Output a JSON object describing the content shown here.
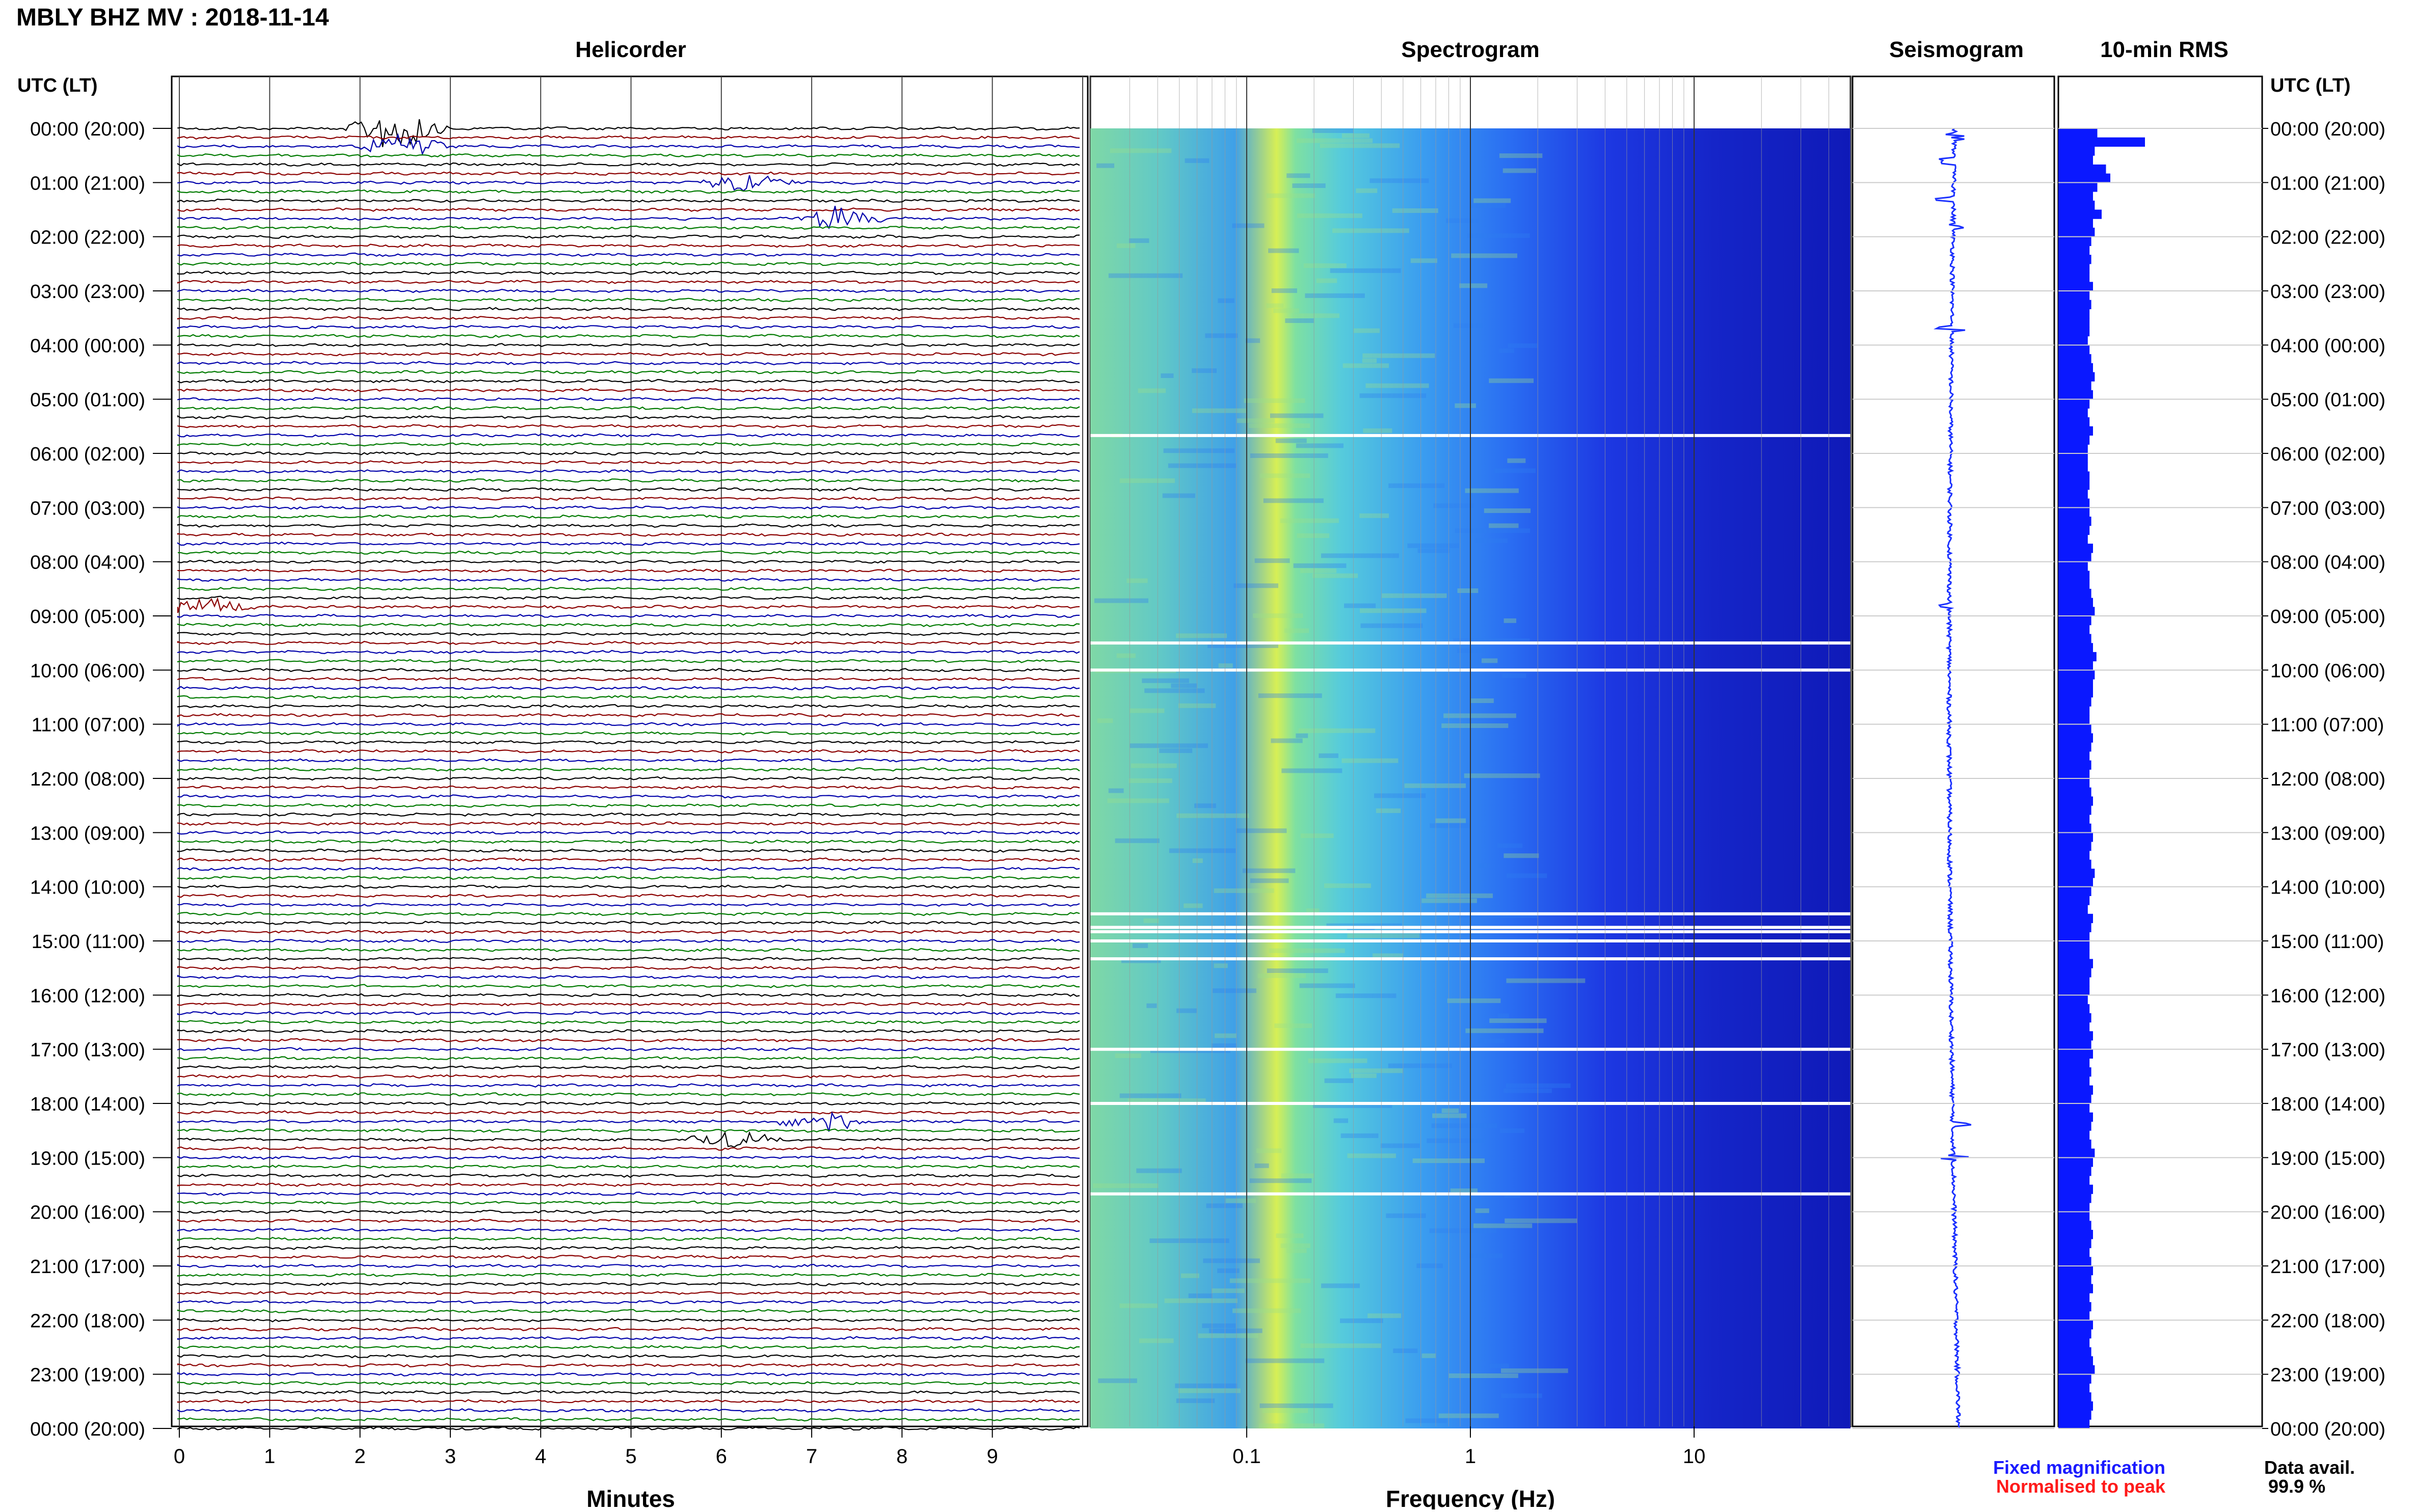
{
  "header": {
    "title": "MBLY BHZ MV : 2018-11-14",
    "utc_left": "UTC (LT)",
    "utc_right": "UTC (LT)"
  },
  "panels": {
    "helicorder": "Helicorder",
    "spectrogram": "Spectrogram",
    "seismogram": "Seismogram",
    "rms": "10-min RMS"
  },
  "time_labels": [
    "00:00 (20:00)",
    "01:00 (21:00)",
    "02:00 (22:00)",
    "03:00 (23:00)",
    "04:00 (00:00)",
    "05:00 (01:00)",
    "06:00 (02:00)",
    "07:00 (03:00)",
    "08:00 (04:00)",
    "09:00 (05:00)",
    "10:00 (06:00)",
    "11:00 (07:00)",
    "12:00 (08:00)",
    "13:00 (09:00)",
    "14:00 (10:00)",
    "15:00 (11:00)",
    "16:00 (12:00)",
    "17:00 (13:00)",
    "18:00 (14:00)",
    "19:00 (15:00)",
    "20:00 (16:00)",
    "21:00 (17:00)",
    "22:00 (18:00)",
    "23:00 (19:00)",
    "00:00 (20:00)"
  ],
  "axes": {
    "minutes_ticks": [
      "0",
      "1",
      "2",
      "3",
      "4",
      "5",
      "6",
      "7",
      "8",
      "9"
    ],
    "minutes_label": "Minutes",
    "freq_ticks": [
      "0.1",
      "1",
      "10"
    ],
    "freq_label": "Frequency (Hz)"
  },
  "legend": {
    "fixed": "Fixed magnification",
    "normalised": "Normalised to peak",
    "fixed_color": "#1a1aff",
    "normalised_color": "#ff1a1a",
    "data_avail_label": "Data avail.",
    "data_avail_value": "99.9 %"
  },
  "colors": {
    "trace_cycle": [
      "#000000",
      "#8b0000",
      "#0000aa",
      "#007a00"
    ],
    "rms_bar": "#0a18ff",
    "seismogram_trace": "#1a30ff"
  },
  "chart_data": [
    {
      "type": "line",
      "title": "Helicorder",
      "xlabel": "Minutes",
      "xlim": [
        0,
        10
      ],
      "y_hours": [
        0,
        24
      ],
      "lines_per_hour": 6,
      "events": [
        {
          "hour": 0.0,
          "minute": 2.4,
          "amplitude": 3.0
        },
        {
          "hour": 0.33,
          "minute": 2.5,
          "amplitude": 1.6
        },
        {
          "hour": 1.0,
          "minute": 6.3,
          "amplitude": 1.2
        },
        {
          "hour": 1.67,
          "minute": 7.3,
          "amplitude": 1.4
        },
        {
          "hour": 8.83,
          "minute": 0.3,
          "amplitude": 1.2
        },
        {
          "hour": 18.33,
          "minute": 7.1,
          "amplitude": 1.5
        },
        {
          "hour": 18.67,
          "minute": 6.1,
          "amplitude": 1.0
        }
      ]
    },
    {
      "type": "heatmap",
      "title": "Spectrogram",
      "xlabel": "Frequency (Hz)",
      "x_scale": "log",
      "xlim": [
        0.02,
        50
      ],
      "y_hours": [
        0,
        24
      ],
      "gap_hours": [
        5.67,
        9.5,
        10.0,
        14.5,
        14.75,
        14.83,
        15.0,
        15.33,
        17.0,
        18.0,
        19.67
      ]
    },
    {
      "type": "line",
      "title": "Seismogram",
      "y_hours": [
        0,
        24
      ],
      "spike_hours": [
        0.15,
        0.6,
        1.3,
        1.8,
        3.7,
        8.8,
        18.4,
        19.0
      ]
    },
    {
      "type": "bar",
      "title": "10-min RMS",
      "orientation": "horizontal",
      "bins_per_hour": 6,
      "hours": [
        0,
        24
      ],
      "values": [
        0.45,
        1.0,
        0.42,
        0.4,
        0.55,
        0.6,
        0.45,
        0.4,
        0.42,
        0.5,
        0.4,
        0.42,
        0.38,
        0.36,
        0.38,
        0.36,
        0.36,
        0.4,
        0.36,
        0.38,
        0.36,
        0.36,
        0.36,
        0.34,
        0.36,
        0.38,
        0.4,
        0.42,
        0.38,
        0.4,
        0.36,
        0.34,
        0.36,
        0.4,
        0.36,
        0.34,
        0.34,
        0.34,
        0.36,
        0.36,
        0.34,
        0.36,
        0.36,
        0.38,
        0.36,
        0.34,
        0.4,
        0.38,
        0.34,
        0.36,
        0.36,
        0.38,
        0.4,
        0.42,
        0.38,
        0.36,
        0.38,
        0.4,
        0.44,
        0.4,
        0.42,
        0.4,
        0.4,
        0.38,
        0.36,
        0.36,
        0.38,
        0.4,
        0.38,
        0.36,
        0.38,
        0.36,
        0.36,
        0.38,
        0.4,
        0.38,
        0.36,
        0.38,
        0.4,
        0.38,
        0.36,
        0.38,
        0.42,
        0.4,
        0.38,
        0.36,
        0.34,
        0.4,
        0.38,
        0.36,
        0.36,
        0.36,
        0.4,
        0.38,
        0.36,
        0.36,
        0.34,
        0.36,
        0.38,
        0.36,
        0.4,
        0.38,
        0.4,
        0.36,
        0.38,
        0.36,
        0.4,
        0.38,
        0.36,
        0.4,
        0.38,
        0.36,
        0.38,
        0.42,
        0.4,
        0.38,
        0.36,
        0.4,
        0.38,
        0.36,
        0.36,
        0.38,
        0.4,
        0.38,
        0.36,
        0.38,
        0.4,
        0.38,
        0.4,
        0.36,
        0.38,
        0.36,
        0.4,
        0.38,
        0.36,
        0.38,
        0.4,
        0.42,
        0.38,
        0.36,
        0.38,
        0.4,
        0.38,
        0.36
      ]
    }
  ]
}
